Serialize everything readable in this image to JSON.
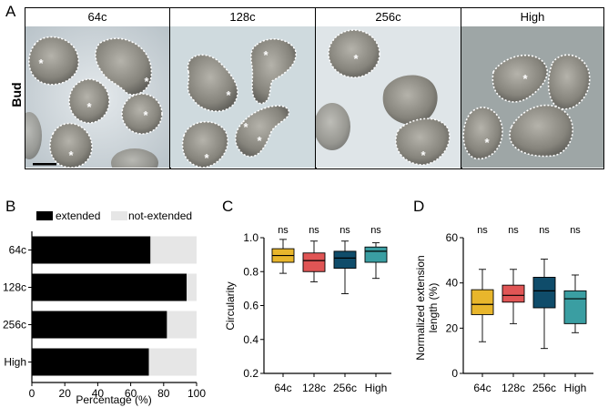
{
  "panel_a": {
    "letter": "A",
    "row_label": "Bud",
    "columns": [
      "64c",
      "128c",
      "256c",
      "High"
    ],
    "scale_bar": true
  },
  "panel_b": {
    "letter": "B"
  },
  "panel_c": {
    "letter": "C"
  },
  "panel_d": {
    "letter": "D"
  },
  "chart_data": [
    {
      "type": "bar",
      "stacked": true,
      "orientation": "horizontal",
      "categories": [
        "64c",
        "128c",
        "256c",
        "High"
      ],
      "series": [
        {
          "name": "extended",
          "values": [
            72,
            94,
            82,
            71
          ],
          "color": "#000000"
        },
        {
          "name": "not-extended",
          "values": [
            28,
            6,
            18,
            29
          ],
          "color": "#e6e6e6"
        }
      ],
      "xlabel": "Percentage (%)",
      "ylabel": "",
      "xlim": [
        0,
        100
      ],
      "xticks": [
        0,
        20,
        40,
        60,
        80,
        100
      ],
      "legend": "top"
    },
    {
      "type": "box",
      "categories": [
        "64c",
        "128c",
        "256c",
        "High"
      ],
      "colors": [
        "#e8b62c",
        "#e05555",
        "#0f4c6a",
        "#3a9ea2"
      ],
      "boxes": [
        {
          "min": 0.79,
          "q1": 0.855,
          "median": 0.895,
          "q3": 0.935,
          "max": 0.99
        },
        {
          "min": 0.74,
          "q1": 0.8,
          "median": 0.865,
          "q3": 0.91,
          "max": 0.98
        },
        {
          "min": 0.67,
          "q1": 0.82,
          "median": 0.88,
          "q3": 0.92,
          "max": 0.98
        },
        {
          "min": 0.76,
          "q1": 0.855,
          "median": 0.92,
          "q3": 0.945,
          "max": 0.97
        }
      ],
      "annotations": [
        "ns",
        "ns",
        "ns",
        "ns"
      ],
      "ylabel": "Circularity",
      "ylim": [
        0.2,
        1.0
      ],
      "yticks": [
        "0.2",
        "0.4",
        "0.6",
        "0.8",
        "1.0"
      ]
    },
    {
      "type": "box",
      "categories": [
        "64c",
        "128c",
        "256c",
        "High"
      ],
      "colors": [
        "#e8b62c",
        "#e05555",
        "#0f4c6a",
        "#3a9ea2"
      ],
      "boxes": [
        {
          "min": 14,
          "q1": 26,
          "median": 30.5,
          "q3": 37,
          "max": 46
        },
        {
          "min": 22,
          "q1": 31.5,
          "median": 34.5,
          "q3": 39,
          "max": 46
        },
        {
          "min": 11,
          "q1": 29,
          "median": 36.5,
          "q3": 42.5,
          "max": 50.5
        },
        {
          "min": 18,
          "q1": 22,
          "median": 33,
          "q3": 36.5,
          "max": 43.5
        }
      ],
      "annotations": [
        "ns",
        "ns",
        "ns",
        "ns"
      ],
      "ylabel": "Normalized extension length (%)",
      "ylim": [
        0,
        60
      ],
      "yticks": [
        "0",
        "20",
        "40",
        "60"
      ]
    }
  ]
}
